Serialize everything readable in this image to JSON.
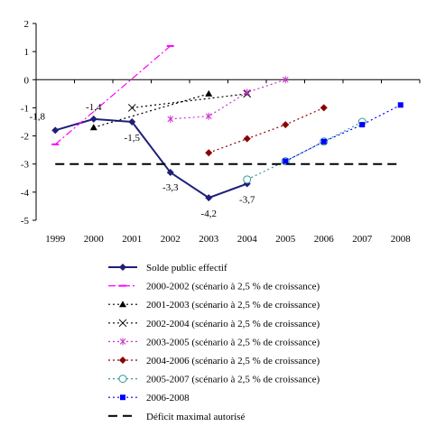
{
  "chart_data": {
    "type": "line",
    "title": "",
    "xlabel": "",
    "ylabel": "",
    "ylim": [
      -5,
      2
    ],
    "yticks": [
      2,
      1,
      0,
      -1,
      -2,
      -3,
      -4,
      -5
    ],
    "ytick_labels": [
      "2",
      "1",
      "0",
      "-1",
      "-2",
      "-3",
      "-4",
      "-5"
    ],
    "categories": [
      "1999",
      "2000",
      "2001",
      "2002",
      "2003",
      "2004",
      "2005",
      "2006",
      "2007",
      "2008"
    ],
    "grid": false,
    "legend_position": "bottom",
    "series": [
      {
        "name": "Solde public effectif",
        "color": "#1f1f7a",
        "line": "solid",
        "marker": "diamond",
        "points": [
          [
            "1999",
            -1.8
          ],
          [
            "2000",
            -1.4
          ],
          [
            "2001",
            -1.5
          ],
          [
            "2002",
            -3.3
          ],
          [
            "2003",
            -4.2
          ],
          [
            "2004",
            -3.7
          ]
        ],
        "labels": [
          "-1,8",
          "-1,4",
          "-1,5",
          "-3,3",
          "-4,2",
          "-3,7"
        ]
      },
      {
        "name": "2000-2002 (scénario à 2,5 % de croissance)",
        "color": "#ff00ff",
        "line": "dashdot",
        "marker": "dash",
        "points": [
          [
            "1999",
            -2.3
          ],
          [
            "2002",
            1.2
          ]
        ]
      },
      {
        "name": "2001-2003 (scénario à 2,5 % de croissance)",
        "color": "#000000",
        "line": "dotted",
        "marker": "triangle",
        "points": [
          [
            "2000",
            -1.7
          ],
          [
            "2003",
            -0.5
          ]
        ]
      },
      {
        "name": "2002-2004 (scénario à 2,5 % de croissance)",
        "color": "#000000",
        "line": "dotted",
        "marker": "x",
        "points": [
          [
            "2001",
            -1.0
          ],
          [
            "2004",
            -0.5
          ]
        ]
      },
      {
        "name": "2003-2005 (scénario à 2,5 % de croissance)",
        "color": "#cc33cc",
        "line": "dotted",
        "marker": "star",
        "points": [
          [
            "2002",
            -1.4
          ],
          [
            "2003",
            -1.3
          ],
          [
            "2004",
            -0.45
          ],
          [
            "2005",
            0.0
          ]
        ]
      },
      {
        "name": "2004-2006 (scénario à 2,5 % de croissance)",
        "color": "#8b0000",
        "line": "dotted",
        "marker": "diamond",
        "points": [
          [
            "2003",
            -2.6
          ],
          [
            "2004",
            -2.1
          ],
          [
            "2005",
            -1.6
          ],
          [
            "2006",
            -1.0
          ]
        ]
      },
      {
        "name": "2005-2007 (scénario à 2,5 % de croissance)",
        "color": "#339999",
        "line": "dotted",
        "marker": "circle",
        "points": [
          [
            "2004",
            -3.55
          ],
          [
            "2005",
            -2.9
          ],
          [
            "2006",
            -2.2
          ],
          [
            "2007",
            -1.5
          ]
        ]
      },
      {
        "name": "2006-2008",
        "color": "#0000ff",
        "line": "dotted",
        "marker": "square",
        "points": [
          [
            "2005",
            -2.9
          ],
          [
            "2006",
            -2.2
          ],
          [
            "2007",
            -1.6
          ],
          [
            "2008",
            -0.9
          ]
        ]
      },
      {
        "name": "Déficit maximal autorisé",
        "color": "#000000",
        "line": "dashed",
        "marker": "none",
        "points": [
          [
            "1999",
            -3.0
          ],
          [
            "2008",
            -3.0
          ]
        ]
      }
    ]
  }
}
